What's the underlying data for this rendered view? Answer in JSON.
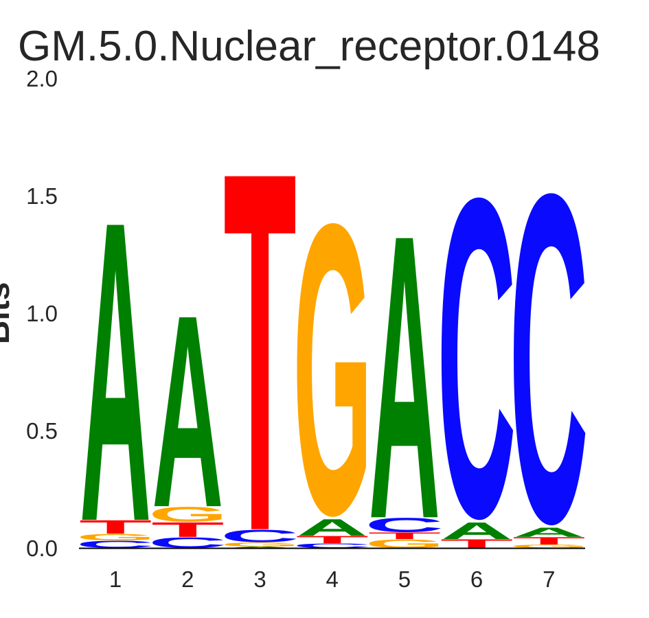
{
  "chart_data": {
    "type": "sequence_logo",
    "title": "GM.5.0.Nuclear_receptor.0148",
    "ylabel": "Bits",
    "xlabel": "",
    "ylim": [
      0.0,
      2.0
    ],
    "yticks": [
      "0.0",
      "0.5",
      "1.0",
      "1.5",
      "2.0"
    ],
    "ytick_values": [
      0.0,
      0.5,
      1.0,
      1.5,
      2.0
    ],
    "xticks": [
      "1",
      "2",
      "3",
      "4",
      "5",
      "6",
      "7"
    ],
    "grid": false,
    "legend": "none",
    "units": "bits",
    "consensus": "AATGACC",
    "letter_colors": {
      "A": "#008000",
      "C": "#0A0AFF",
      "G": "#FFA500",
      "T": "#FF0000"
    },
    "text_color": "#262626",
    "axis_color": "#000000",
    "background_color": "#ffffff",
    "positions": [
      {
        "position": 1,
        "stack": [
          {
            "letter": "C",
            "bits": 0.032
          },
          {
            "letter": "G",
            "bits": 0.029
          },
          {
            "letter": "T",
            "bits": 0.059
          },
          {
            "letter": "A",
            "bits": 1.307
          }
        ]
      },
      {
        "position": 2,
        "stack": [
          {
            "letter": "C",
            "bits": 0.047
          },
          {
            "letter": "T",
            "bits": 0.064
          },
          {
            "letter": "G",
            "bits": 0.067
          },
          {
            "letter": "A",
            "bits": 0.837
          }
        ]
      },
      {
        "position": 3,
        "stack": [
          {
            "letter": "A",
            "bits": 0.006
          },
          {
            "letter": "G",
            "bits": 0.018
          },
          {
            "letter": "C",
            "bits": 0.056
          },
          {
            "letter": "T",
            "bits": 1.564
          }
        ]
      },
      {
        "position": 4,
        "stack": [
          {
            "letter": "C",
            "bits": 0.02
          },
          {
            "letter": "T",
            "bits": 0.032
          },
          {
            "letter": "A",
            "bits": 0.073
          },
          {
            "letter": "G",
            "bits": 1.316
          }
        ]
      },
      {
        "position": 5,
        "stack": [
          {
            "letter": "G",
            "bits": 0.038
          },
          {
            "letter": "T",
            "bits": 0.029
          },
          {
            "letter": "C",
            "bits": 0.064
          },
          {
            "letter": "A",
            "bits": 1.237
          }
        ]
      },
      {
        "position": 6,
        "stack": [
          {
            "letter": "T",
            "bits": 0.038
          },
          {
            "letter": "A",
            "bits": 0.073
          },
          {
            "letter": "C",
            "bits": 1.445
          }
        ]
      },
      {
        "position": 7,
        "stack": [
          {
            "letter": "G",
            "bits": 0.015
          },
          {
            "letter": "T",
            "bits": 0.032
          },
          {
            "letter": "A",
            "bits": 0.041
          },
          {
            "letter": "C",
            "bits": 1.488
          }
        ]
      }
    ]
  }
}
